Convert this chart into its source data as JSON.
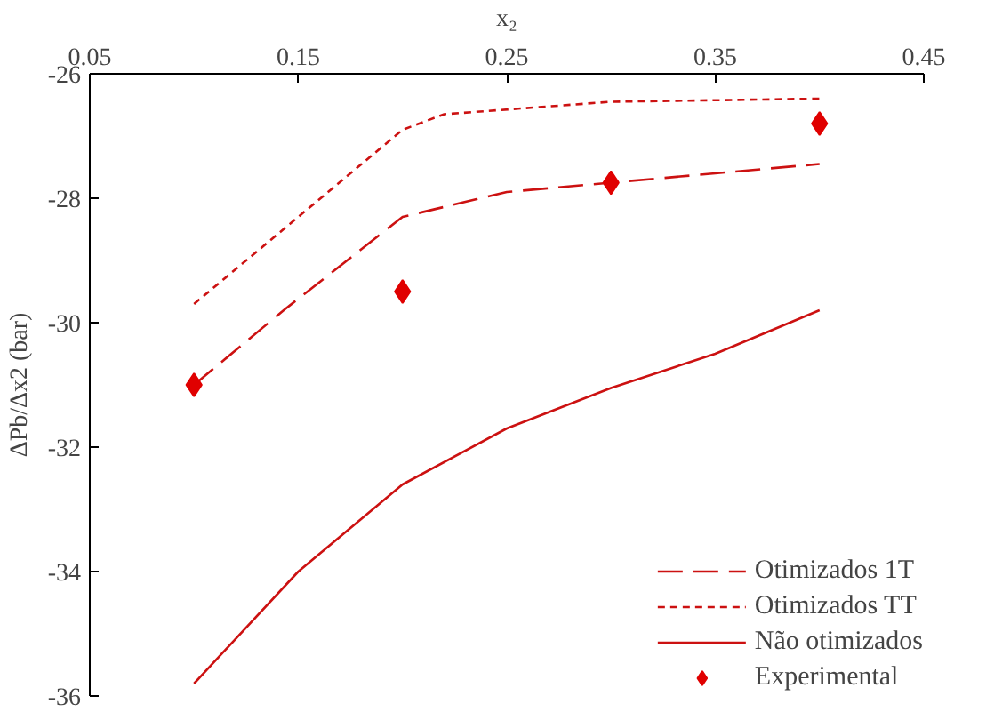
{
  "chart_data": {
    "type": "line",
    "xlabel": "x₂",
    "ylabel": "ΔPb/Δx2 (bar)",
    "xlim": [
      0.05,
      0.45
    ],
    "xticks": [
      0.05,
      0.15,
      0.25,
      0.35,
      0.45
    ],
    "ylim": [
      -36,
      -26
    ],
    "yticks": [
      -36,
      -34,
      -32,
      -30,
      -28,
      -26
    ],
    "grid": false,
    "legend": "bottom right",
    "series": [
      {
        "name": "Otimizados 1T",
        "line_style": "dashed",
        "color": "#cc1111",
        "x": [
          0.1,
          0.143,
          0.2,
          0.25,
          0.3,
          0.35,
          0.4
        ],
        "values": [
          -31.0,
          -29.8,
          -28.3,
          -27.9,
          -27.75,
          -27.6,
          -27.45
        ]
      },
      {
        "name": "Otimizados TT",
        "line_style": "dotted",
        "color": "#cc1111",
        "x": [
          0.1,
          0.15,
          0.2,
          0.22,
          0.3,
          0.4
        ],
        "values": [
          -29.7,
          -28.3,
          -26.9,
          -26.65,
          -26.45,
          -26.4
        ]
      },
      {
        "name": "Não otimizados",
        "line_style": "solid",
        "color": "#cc1111",
        "x": [
          0.1,
          0.15,
          0.2,
          0.25,
          0.3,
          0.35,
          0.4
        ],
        "values": [
          -35.8,
          -34.0,
          -32.6,
          -31.7,
          -31.05,
          -30.5,
          -29.8
        ]
      },
      {
        "name": "Experimental",
        "type": "scatter",
        "marker": "diamond",
        "color": "#e00000",
        "x": [
          0.1,
          0.2,
          0.3,
          0.4
        ],
        "values": [
          -31.0,
          -29.5,
          -27.75,
          -26.8
        ]
      }
    ]
  }
}
